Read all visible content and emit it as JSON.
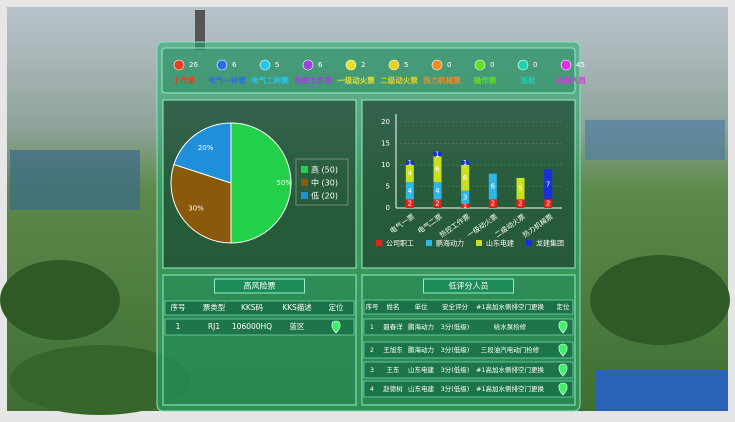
{
  "status_bar": [
    {
      "count": 26,
      "label": "工作票",
      "color": "#e8401e"
    },
    {
      "count": 6,
      "label": "电气一种票",
      "color": "#2a6ee8"
    },
    {
      "count": 5,
      "label": "电气二种票",
      "color": "#22c6e8"
    },
    {
      "count": 6,
      "label": "热控工作票",
      "color": "#a040e0"
    },
    {
      "count": 2,
      "label": "一级动火票",
      "color": "#e8e020"
    },
    {
      "count": 5,
      "label": "二级动火票",
      "color": "#e8d020"
    },
    {
      "count": 0,
      "label": "热力机械票",
      "color": "#f08a20"
    },
    {
      "count": 0,
      "label": "操作票",
      "color": "#60e020"
    },
    {
      "count": 0,
      "label": "巡检",
      "color": "#20d0b0"
    },
    {
      "count": 45,
      "label": "外委人员",
      "color": "#e030e0"
    }
  ],
  "pie": {
    "type": "pie",
    "categories": [
      "高",
      "中",
      "低"
    ],
    "values": [
      50,
      30,
      20
    ],
    "value_labels": [
      "50%",
      "30%",
      "20%"
    ],
    "legend_labels": [
      "高 (50)",
      "中 (30)",
      "低 (20)"
    ],
    "colors": [
      "#22d04a",
      "#8a5a0c",
      "#1e8fd8"
    ]
  },
  "bar": {
    "type": "bar",
    "stacked": true,
    "categories": [
      "电气一票",
      "电气二票",
      "热控工作票",
      "一级动火票",
      "二级动火票",
      "热力机械票"
    ],
    "series": [
      {
        "name": "公司职工",
        "color": "#e8201a",
        "values": [
          2,
          2,
          1,
          2,
          2,
          2
        ]
      },
      {
        "name": "鹏海动力",
        "color": "#2fb6e8",
        "values": [
          4,
          4,
          3,
          6,
          0,
          0
        ]
      },
      {
        "name": "山东电建",
        "color": "#c8e01e",
        "values": [
          4,
          6,
          6,
          0,
          5,
          0
        ]
      },
      {
        "name": "龙建集团",
        "color": "#1a2ee0",
        "values": [
          1,
          1,
          1,
          0,
          0,
          7
        ]
      }
    ],
    "ylim": [
      0,
      20
    ],
    "yticks": [
      0,
      5,
      10,
      15,
      20
    ]
  },
  "high_risk": {
    "title": "高风险票",
    "columns": [
      "序号",
      "票类型",
      "KKS码",
      "KKS描述",
      "定位"
    ],
    "rows": [
      [
        "1",
        "RJ1",
        "106000HQ",
        "蓝区"
      ]
    ]
  },
  "low_score": {
    "title": "低评分人员",
    "columns": [
      "序号",
      "姓名",
      "单位",
      "安全评分",
      "#1高加水侧排空门更换",
      "定位"
    ],
    "rows": [
      [
        "1",
        "聂春洋",
        "鹏海动力",
        "3分(低级)",
        "给水泵检修"
      ],
      [
        "2",
        "王旭东",
        "鹏海动力",
        "3分(低级)",
        "三段油汽电动门检修"
      ],
      [
        "3",
        "王东",
        "山东电建",
        "3分(低级)",
        "#1高加水侧排空门更换"
      ],
      [
        "4",
        "赵德树",
        "山东电建",
        "3分(低级)",
        "#1高加水侧排空门更换"
      ]
    ]
  }
}
